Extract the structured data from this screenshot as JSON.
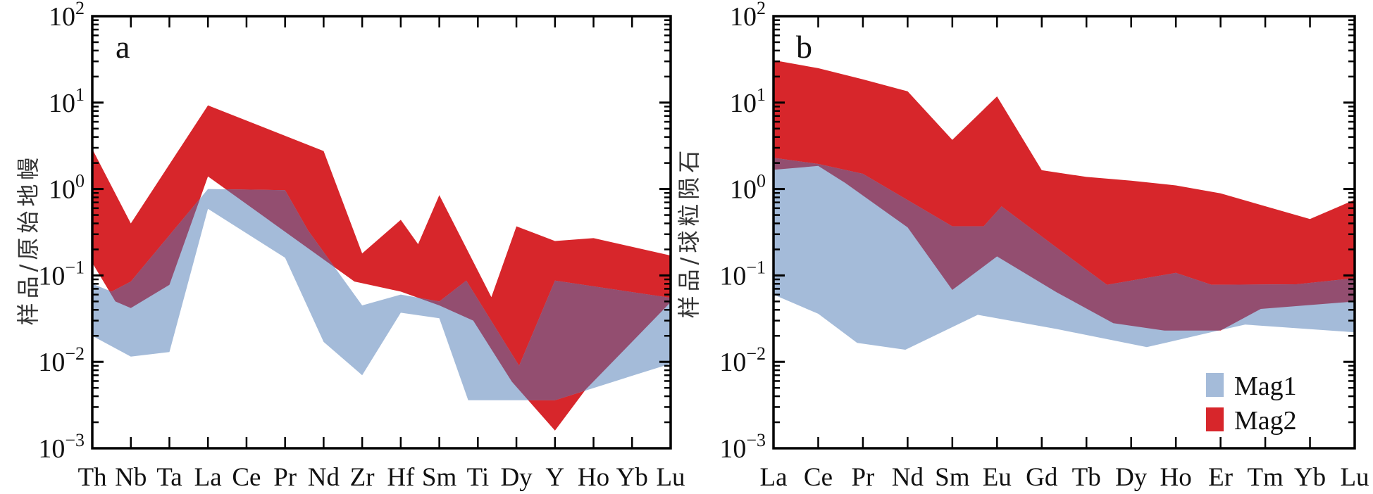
{
  "colors": {
    "Mag1": "#a4bbd9",
    "Mag2": "#d7262b",
    "overlap": "#934e70",
    "axis": "#000000"
  },
  "legend": [
    {
      "label": "Mag1",
      "color": "#a4bbd9"
    },
    {
      "label": "Mag2",
      "color": "#d7262b"
    }
  ],
  "chart_data": [
    {
      "type": "area",
      "panel_label": "a",
      "title": "",
      "xlabel": "",
      "ylabel": "样品/原始地幔",
      "yscale": "log",
      "ylim": [
        0.001,
        100
      ],
      "ytick_labels": [
        {
          "base": "10",
          "exp": "2"
        },
        {
          "base": "10",
          "exp": "1"
        },
        {
          "base": "10",
          "exp": "0"
        },
        {
          "base": "10",
          "exp": "−1"
        },
        {
          "base": "10",
          "exp": "−2"
        },
        {
          "base": "10",
          "exp": "−3"
        }
      ],
      "categories": [
        "Th",
        "Nb",
        "Ta",
        "La",
        "Ce",
        "Pr",
        "Nd",
        "Zr",
        "Hf",
        "Sm",
        "Ti",
        "Dy",
        "Y",
        "Ho",
        "Yb",
        "Lu"
      ],
      "series": [
        {
          "name": "Mag1",
          "upper": [
            [
              0,
              0.08
            ],
            [
              0.5,
              0.065
            ],
            [
              1,
              0.085
            ],
            [
              3,
              1.0
            ],
            [
              5,
              0.97
            ],
            [
              5.6,
              0.33
            ],
            [
              7,
              0.045
            ],
            [
              8,
              0.06
            ],
            [
              9,
              0.05
            ],
            [
              9.7,
              0.087
            ],
            [
              11.07,
              0.009
            ],
            [
              12,
              0.087
            ],
            [
              15,
              0.055
            ]
          ],
          "lower": [
            [
              0,
              0.02
            ],
            [
              1,
              0.0115
            ],
            [
              2,
              0.013
            ],
            [
              3,
              0.59
            ],
            [
              5,
              0.16
            ],
            [
              6,
              0.017
            ],
            [
              7,
              0.007
            ],
            [
              8,
              0.037
            ],
            [
              9,
              0.032
            ],
            [
              9.75,
              0.0036
            ],
            [
              12,
              0.0036
            ],
            [
              14,
              0.0069
            ],
            [
              15,
              0.0095
            ]
          ]
        },
        {
          "name": "Mag2",
          "upper": [
            [
              0,
              2.9
            ],
            [
              1,
              0.4
            ],
            [
              3,
              9.3
            ],
            [
              6,
              2.75
            ],
            [
              7,
              0.18
            ],
            [
              8,
              0.44
            ],
            [
              8.45,
              0.23
            ],
            [
              9,
              0.85
            ],
            [
              10.35,
              0.056
            ],
            [
              11,
              0.37
            ],
            [
              12,
              0.25
            ],
            [
              13,
              0.27
            ],
            [
              15,
              0.17
            ]
          ],
          "lower": [
            [
              0,
              0.14
            ],
            [
              0.6,
              0.05
            ],
            [
              1,
              0.042
            ],
            [
              2,
              0.078
            ],
            [
              3,
              1.4
            ],
            [
              6.8,
              0.085
            ],
            [
              8,
              0.065
            ],
            [
              9,
              0.045
            ],
            [
              9.88,
              0.03
            ],
            [
              10.88,
              0.0059
            ],
            [
              12,
              0.0016
            ],
            [
              12.8,
              0.0048
            ],
            [
              15,
              0.049
            ]
          ]
        }
      ],
      "legend": null
    },
    {
      "type": "area",
      "panel_label": "b",
      "title": "",
      "xlabel": "",
      "ylabel": "样品/球粒陨石",
      "yscale": "log",
      "ylim": [
        0.001,
        100
      ],
      "ytick_labels": [
        {
          "base": "10",
          "exp": "2"
        },
        {
          "base": "10",
          "exp": "1"
        },
        {
          "base": "10",
          "exp": "0"
        },
        {
          "base": "10",
          "exp": "−1"
        },
        {
          "base": "10",
          "exp": "−2"
        },
        {
          "base": "10",
          "exp": "−3"
        }
      ],
      "categories": [
        "La",
        "Ce",
        "Pr",
        "Nd",
        "Sm",
        "Eu",
        "Gd",
        "Tb",
        "Dy",
        "Ho",
        "Er",
        "Tm",
        "Yb",
        "Lu"
      ],
      "series": [
        {
          "name": "Mag1",
          "upper": [
            [
              0,
              2.3
            ],
            [
              1,
              1.95
            ],
            [
              2,
              1.5
            ],
            [
              4,
              0.37
            ],
            [
              4.7,
              0.37
            ],
            [
              5.1,
              0.63
            ],
            [
              6.33,
              0.21
            ],
            [
              7.46,
              0.078
            ],
            [
              9,
              0.107
            ],
            [
              9.8,
              0.078
            ],
            [
              11.7,
              0.079
            ],
            [
              13,
              0.093
            ]
          ],
          "lower": [
            [
              0,
              0.06
            ],
            [
              1,
              0.036
            ],
            [
              1.87,
              0.0166
            ],
            [
              2.95,
              0.0138
            ],
            [
              4.57,
              0.035
            ],
            [
              6.33,
              0.024
            ],
            [
              8.35,
              0.0148
            ],
            [
              9.95,
              0.023
            ],
            [
              10.55,
              0.027
            ],
            [
              13,
              0.022
            ]
          ]
        },
        {
          "name": "Mag2",
          "upper": [
            [
              0,
              31
            ],
            [
              1,
              25
            ],
            [
              2,
              18.6
            ],
            [
              3,
              13.5
            ],
            [
              4,
              3.7
            ],
            [
              5,
              11.8
            ],
            [
              6,
              1.65
            ],
            [
              7,
              1.38
            ],
            [
              8,
              1.25
            ],
            [
              9,
              1.1
            ],
            [
              10,
              0.89
            ],
            [
              12,
              0.45
            ],
            [
              13,
              0.75
            ]
          ],
          "lower": [
            [
              0,
              1.67
            ],
            [
              1,
              1.85
            ],
            [
              1.6,
              1.18
            ],
            [
              3,
              0.36
            ],
            [
              4,
              0.068
            ],
            [
              5,
              0.166
            ],
            [
              6.33,
              0.064
            ],
            [
              7.6,
              0.028
            ],
            [
              8.75,
              0.023
            ],
            [
              10,
              0.023
            ],
            [
              10.9,
              0.041
            ],
            [
              13,
              0.05
            ]
          ]
        }
      ],
      "legend": "bottom-right"
    }
  ]
}
